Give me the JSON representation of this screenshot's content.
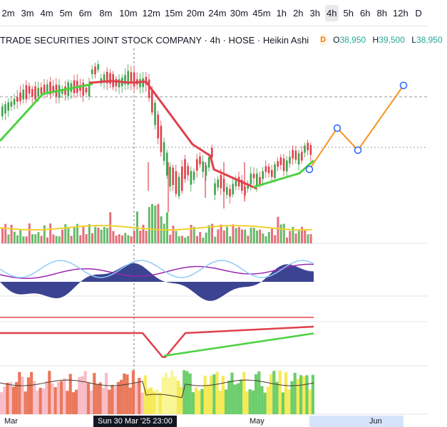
{
  "toolbar": {
    "timeframes": [
      "2m",
      "3m",
      "4m",
      "5m",
      "6m",
      "8m",
      "10m",
      "12m",
      "15m",
      "20m",
      "24m",
      "30m",
      "45m",
      "1h",
      "2h",
      "3h",
      "4h",
      "5h",
      "6h",
      "8h",
      "12h",
      "D"
    ],
    "active": "4h"
  },
  "legend": {
    "title": "TRADE SECURITIES JOINT STOCK COMPANY · 4h · HOSE · Heikin Ashi",
    "badge": "D",
    "open_label": "O",
    "open": "38,950",
    "high_label": "H",
    "high": "39,500",
    "low_label": "L",
    "low": "38,950"
  },
  "dates": {
    "mar": "Mar",
    "cursor": "Sun 30 Mar '25   23:00",
    "may": "May",
    "jun": "Jun"
  },
  "colors": {
    "up": "#3fa34d",
    "down": "#e0404b",
    "ma_red": "#e0404b",
    "ma_green": "#4cd13f",
    "forecast": "#f7931e",
    "volume_ma": "#f2d12e",
    "up_volume": "#4caf50",
    "down_volume": "#e25563"
  },
  "icons": [
    "cursor-crosshair",
    "forecast-point"
  ]
}
